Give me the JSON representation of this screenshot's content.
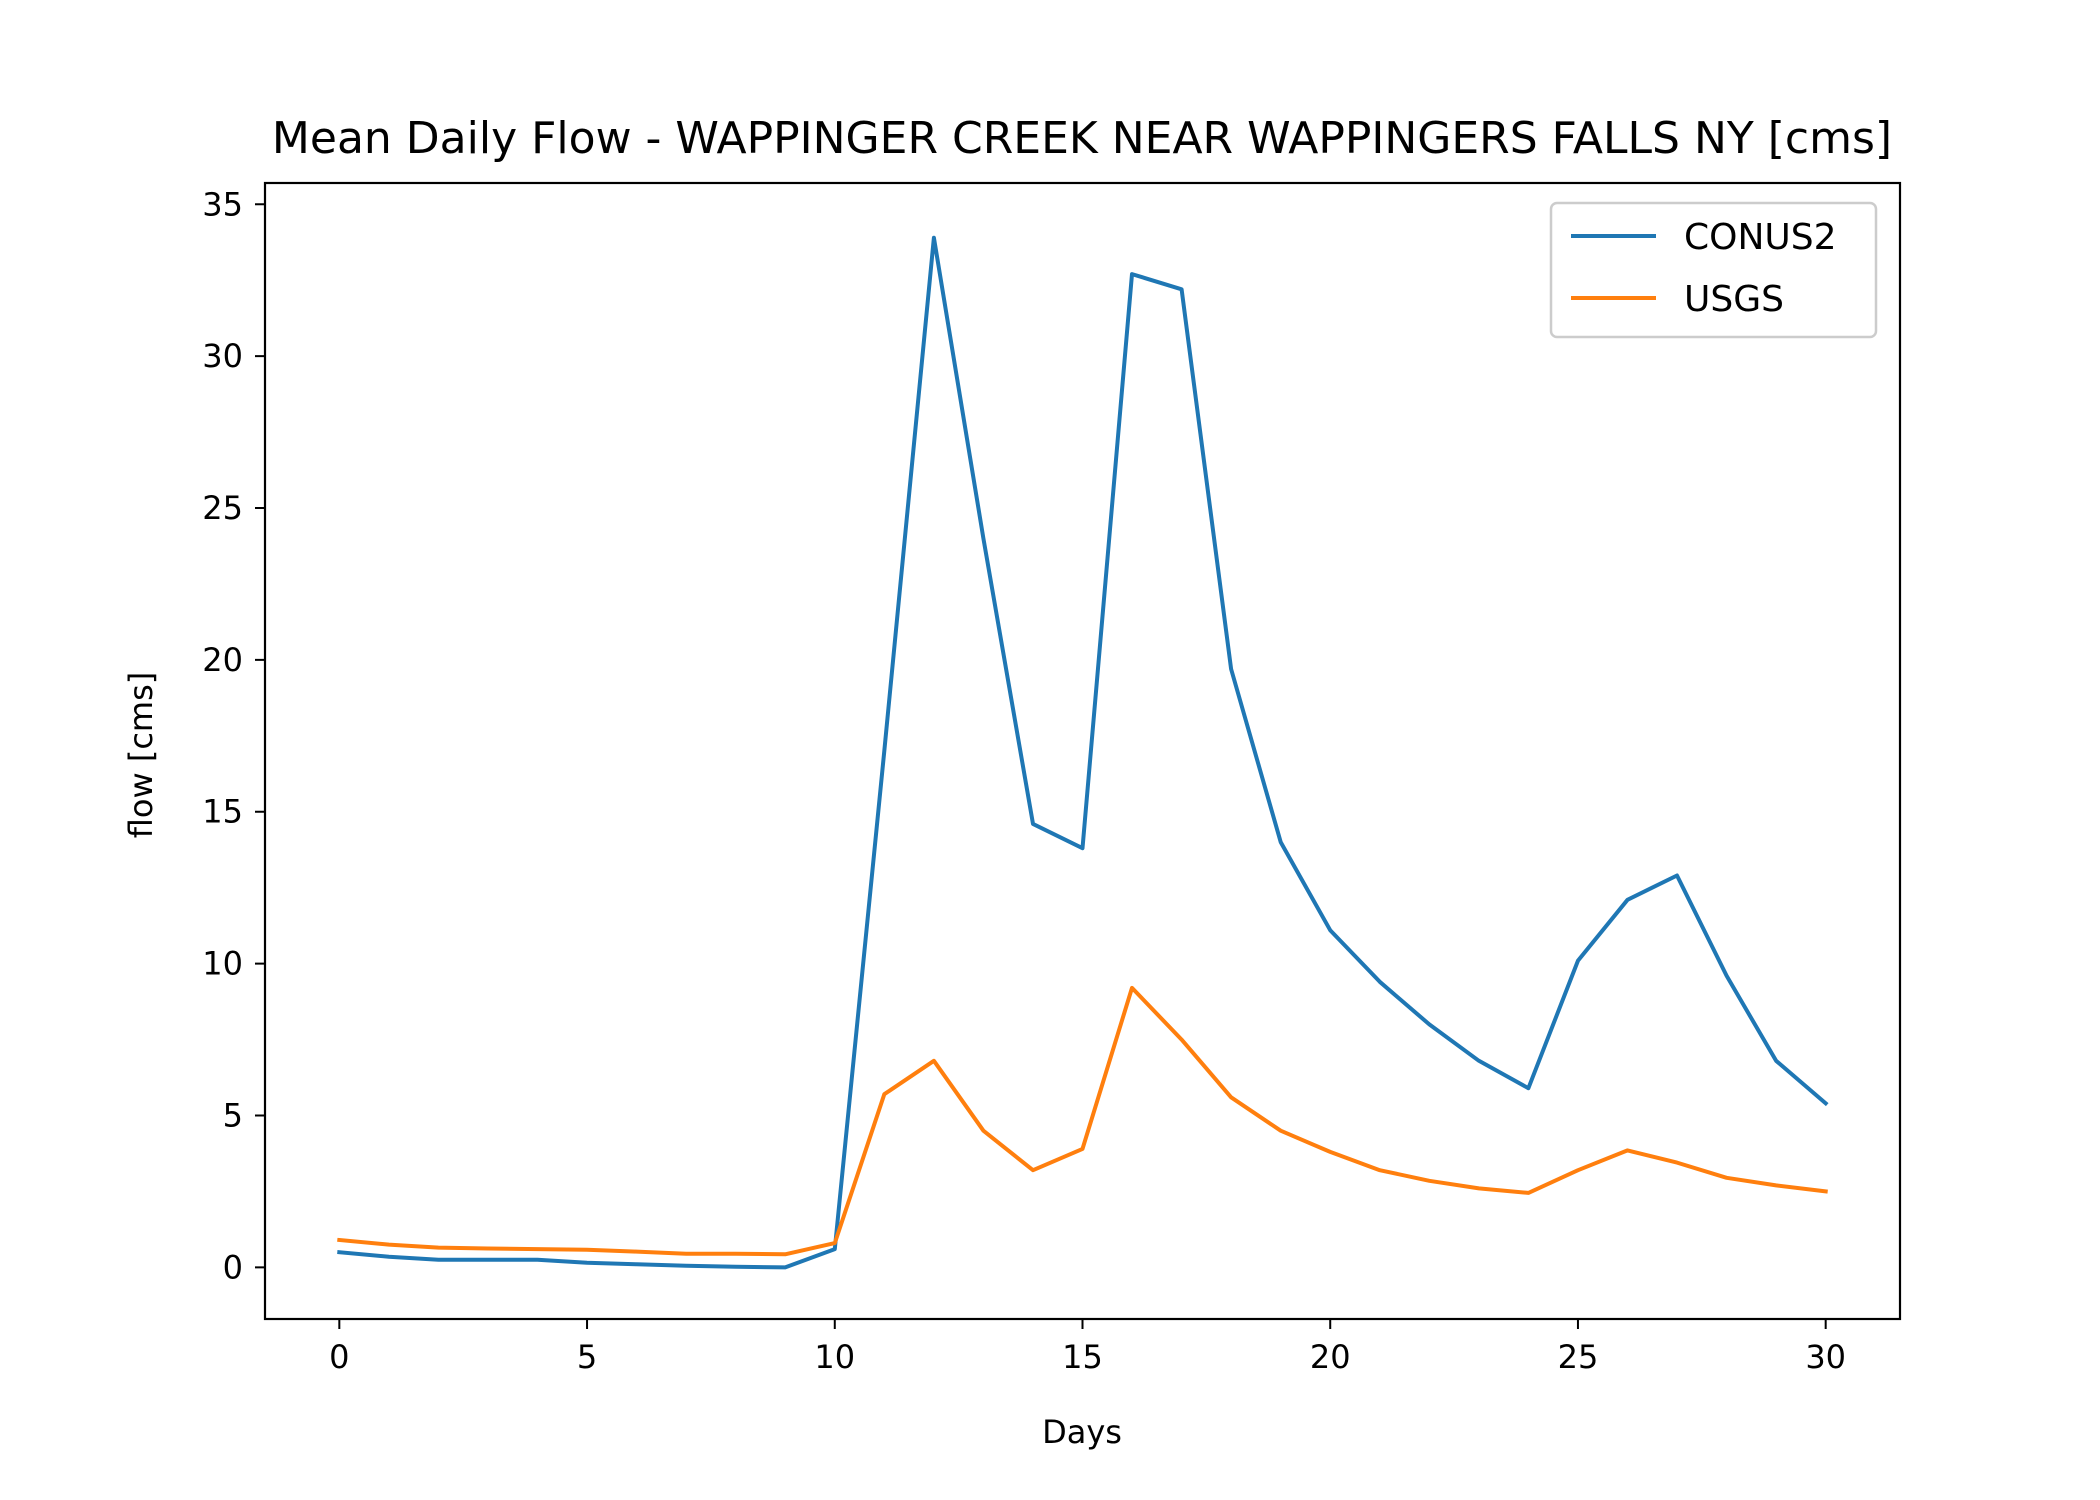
{
  "chart_data": {
    "type": "line",
    "title": "Mean Daily Flow - WAPPINGER CREEK NEAR WAPPINGERS FALLS NY [cms]",
    "xlabel": "Days",
    "ylabel": "flow [cms]",
    "xlim": [
      -1.5,
      31.5
    ],
    "ylim": [
      -1.7,
      35.7
    ],
    "xticks": [
      0,
      5,
      10,
      15,
      20,
      25,
      30
    ],
    "yticks": [
      0,
      5,
      10,
      15,
      20,
      25,
      30,
      35
    ],
    "grid": false,
    "legend_position": "top-right",
    "x": [
      0,
      1,
      2,
      3,
      4,
      5,
      6,
      7,
      8,
      9,
      10,
      11,
      12,
      13,
      14,
      15,
      16,
      17,
      18,
      19,
      20,
      21,
      22,
      23,
      24,
      25,
      26,
      27,
      28,
      29,
      30
    ],
    "series": [
      {
        "name": "CONUS2",
        "color": "#1f77b4",
        "values": [
          0.5,
          0.35,
          0.25,
          0.25,
          0.25,
          0.15,
          0.1,
          0.05,
          0.02,
          0.0,
          0.6,
          17.0,
          33.9,
          24.0,
          14.6,
          13.8,
          32.7,
          32.2,
          19.7,
          14.0,
          11.1,
          9.4,
          8.0,
          6.8,
          5.9,
          10.1,
          12.1,
          12.9,
          9.6,
          6.8,
          5.4
        ]
      },
      {
        "name": "USGS",
        "color": "#ff7f0e",
        "values": [
          0.9,
          0.75,
          0.65,
          0.62,
          0.6,
          0.58,
          0.52,
          0.45,
          0.45,
          0.43,
          0.8,
          5.7,
          6.8,
          4.5,
          3.2,
          3.9,
          9.2,
          7.5,
          5.6,
          4.5,
          3.8,
          3.2,
          2.85,
          2.6,
          2.45,
          3.2,
          3.85,
          3.45,
          2.95,
          2.7,
          2.5
        ]
      }
    ]
  }
}
